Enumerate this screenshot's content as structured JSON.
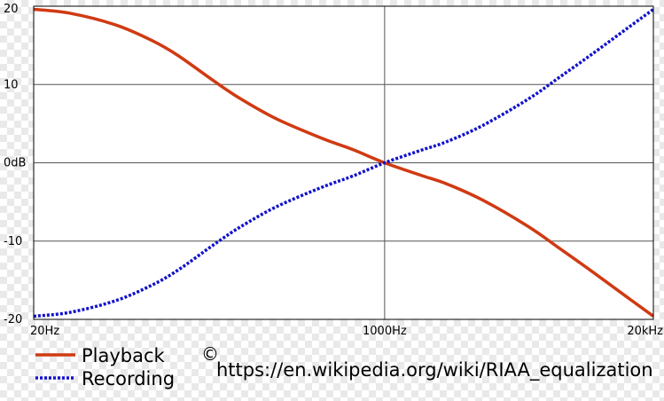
{
  "chart_data": {
    "type": "line",
    "x_scale": "log",
    "xlim": [
      20,
      20000
    ],
    "ylim": [
      -20,
      20
    ],
    "grid": true,
    "x_ticks": [
      {
        "value": 20,
        "label": "20Hz"
      },
      {
        "value": 1000,
        "label": "1000Hz"
      },
      {
        "value": 20000,
        "label": "20kHz"
      }
    ],
    "y_ticks": [
      {
        "value": 20,
        "label": "20"
      },
      {
        "value": 10,
        "label": "10"
      },
      {
        "value": 0,
        "label": "0dB"
      },
      {
        "value": -10,
        "label": "-10"
      },
      {
        "value": -20,
        "label": "-20"
      }
    ],
    "series": [
      {
        "name": "Playback",
        "color": "#d03a12",
        "style": "solid",
        "x": [
          20,
          30,
          50,
          75,
          100,
          150,
          200,
          300,
          500,
          700,
          1000,
          1500,
          2000,
          3000,
          5000,
          7000,
          10000,
          15000,
          20000
        ],
        "y": [
          19.6,
          19.1,
          17.6,
          15.6,
          13.7,
          10.4,
          8.2,
          5.6,
          3.1,
          1.7,
          0.0,
          -1.6,
          -2.7,
          -4.8,
          -8.2,
          -10.9,
          -13.8,
          -17.2,
          -19.6
        ]
      },
      {
        "name": "Recording",
        "color": "#1212cc",
        "style": "dotted",
        "x": [
          20,
          30,
          50,
          75,
          100,
          150,
          200,
          300,
          500,
          700,
          1000,
          1500,
          2000,
          3000,
          5000,
          7000,
          10000,
          15000,
          20000
        ],
        "y": [
          -19.6,
          -19.1,
          -17.6,
          -15.6,
          -13.7,
          -10.4,
          -8.2,
          -5.6,
          -3.1,
          -1.7,
          0.0,
          1.6,
          2.7,
          4.8,
          8.2,
          10.9,
          13.8,
          17.2,
          19.6
        ]
      }
    ]
  },
  "legend": {
    "items": [
      {
        "label": "Playback",
        "color": "#d03a12",
        "style": "solid"
      },
      {
        "label": "Recording",
        "color": "#1212cc",
        "style": "dotted"
      }
    ],
    "placement": "bottom-left"
  },
  "credit": {
    "copyright_symbol": "©",
    "url": "https://en.wikipedia.org/wiki/RIAA_equalization"
  }
}
